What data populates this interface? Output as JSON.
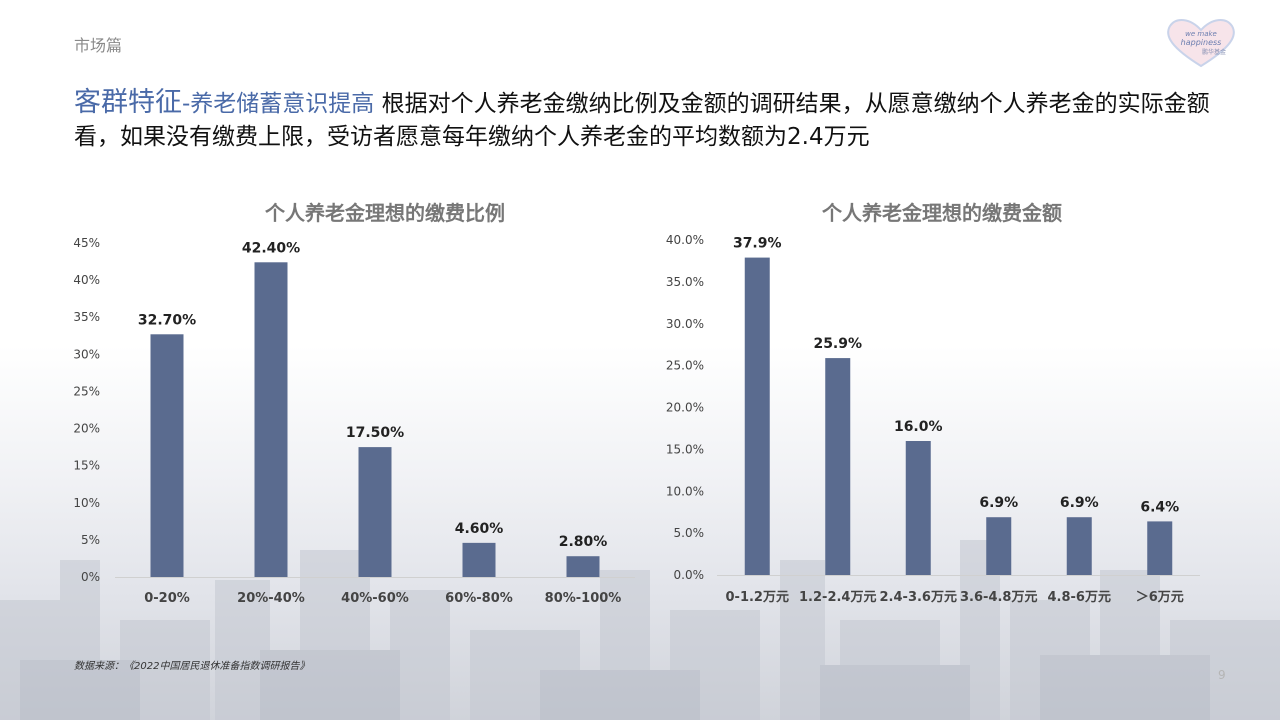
{
  "section_tag": "市场篇",
  "headline": {
    "main": "客群特征",
    "sub": "-养老储蓄意识提高",
    "body": " 根据对个人养老金缴纳比例及金额的调研结果，从愿意缴纳个人养老金的实际金额看，如果没有缴费上限，受访者愿意每年缴纳个人养老金的平均数额为2.4万元"
  },
  "logo_text": [
    "we make",
    "happiness",
    "鹏华基金"
  ],
  "colors": {
    "bar": "#5a6b8f",
    "accent": "#4a6aa8"
  },
  "chart_data": [
    {
      "type": "bar",
      "title": "个人养老金理想的缴费比例",
      "categories": [
        "0-20%",
        "20%-40%",
        "40%-60%",
        "60%-80%",
        "80%-100%"
      ],
      "values": [
        32.7,
        42.4,
        17.5,
        4.6,
        2.8
      ],
      "data_labels": [
        "32.70%",
        "42.40%",
        "17.50%",
        "4.60%",
        "2.80%"
      ],
      "ylim": [
        0,
        45
      ],
      "yticks": [
        0,
        5,
        10,
        15,
        20,
        25,
        30,
        35,
        40,
        45
      ],
      "ytick_labels": [
        "0%",
        "5%",
        "10%",
        "15%",
        "20%",
        "25%",
        "30%",
        "35%",
        "40%",
        "45%"
      ],
      "xlabel": "",
      "ylabel": "",
      "grid": false,
      "legend": "none"
    },
    {
      "type": "bar",
      "title": "个人养老金理想的缴费金额",
      "categories": [
        "0-1.2万元",
        "1.2-2.4万元",
        "2.4-3.6万元",
        "3.6-4.8万元",
        "4.8-6万元",
        "＞6万元"
      ],
      "values": [
        37.9,
        25.9,
        16.0,
        6.9,
        6.9,
        6.4
      ],
      "data_labels": [
        "37.9%",
        "25.9%",
        "16.0%",
        "6.9%",
        "6.9%",
        "6.4%"
      ],
      "ylim": [
        0,
        40
      ],
      "yticks": [
        0,
        5,
        10,
        15,
        20,
        25,
        30,
        35,
        40
      ],
      "ytick_labels": [
        "0.0%",
        "5.0%",
        "10.0%",
        "15.0%",
        "20.0%",
        "25.0%",
        "30.0%",
        "35.0%",
        "40.0%"
      ],
      "xlabel": "",
      "ylabel": "",
      "grid": false,
      "legend": "none"
    }
  ],
  "source": "数据来源：《2022中国居民退休准备指数调研报告》",
  "page_number": "9"
}
